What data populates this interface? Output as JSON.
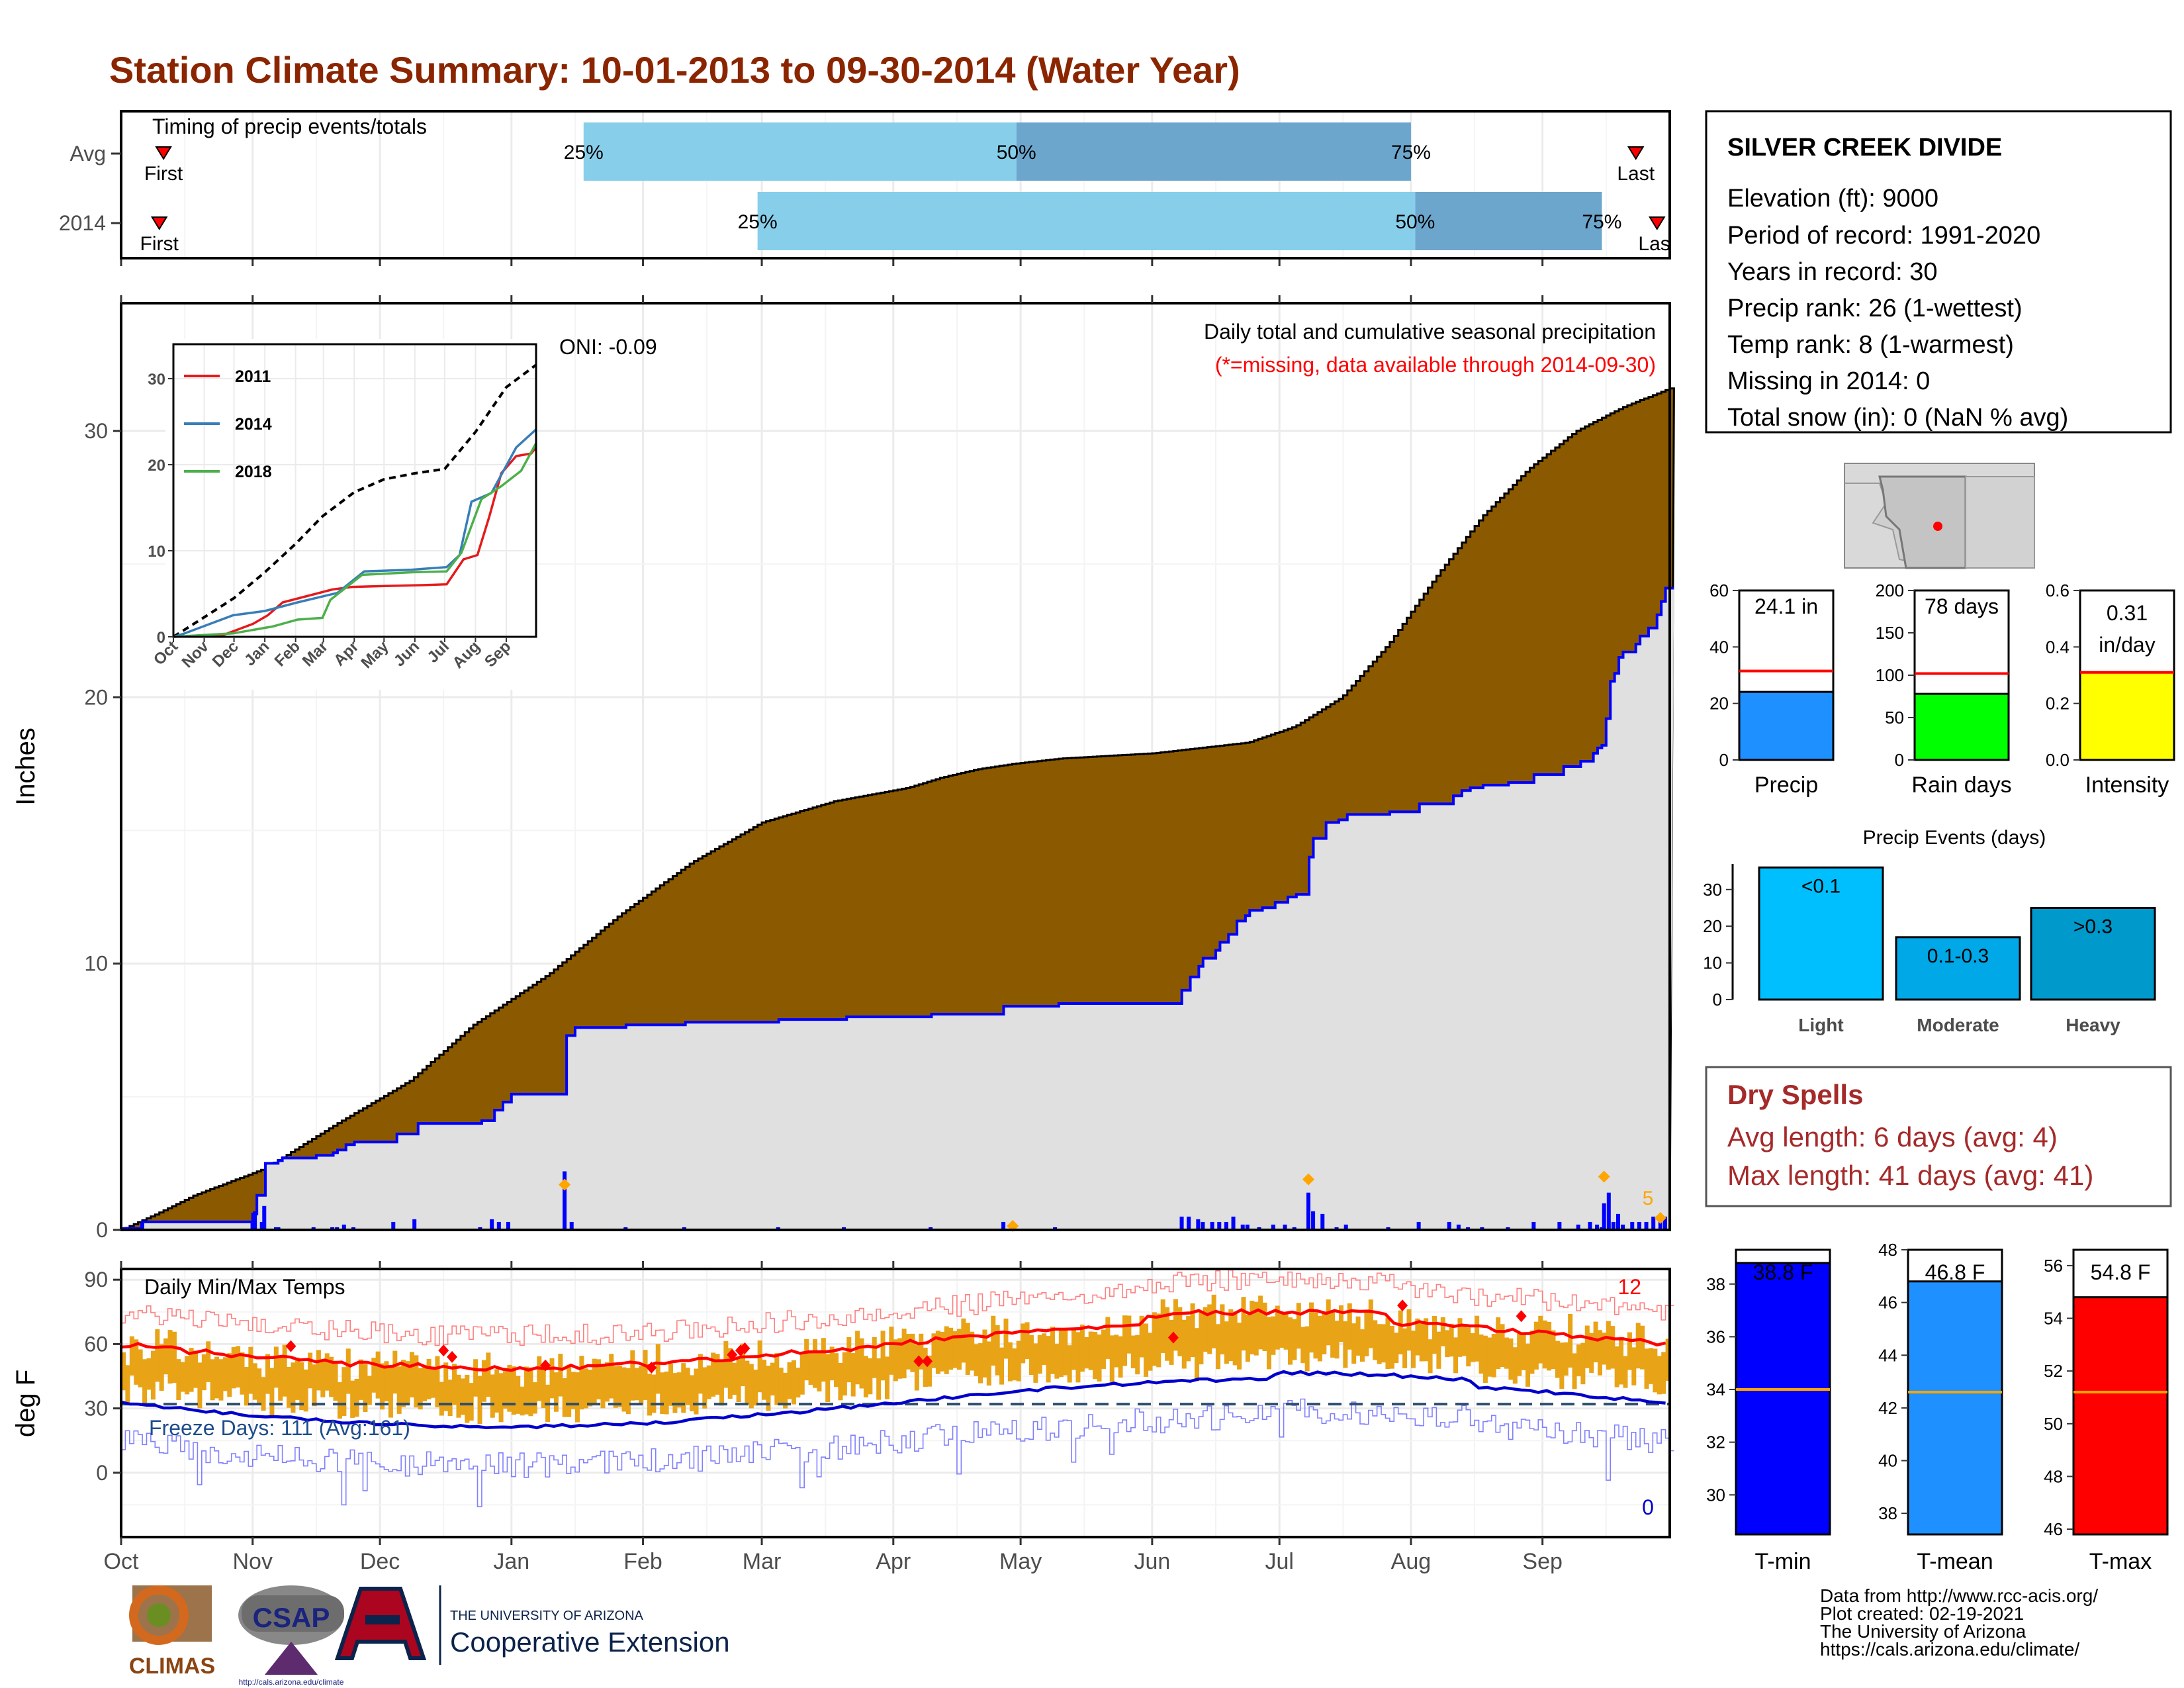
{
  "title": "Station Climate Summary: 10-01-2013 to 09-30-2014 (Water Year)",
  "months": [
    "Oct",
    "Nov",
    "Dec",
    "Jan",
    "Feb",
    "Mar",
    "Apr",
    "May",
    "Jun",
    "Jul",
    "Aug",
    "Sep"
  ],
  "timing": {
    "title": "Timing of precip events/totals",
    "rows": [
      {
        "label": "Avg",
        "first_label": "First",
        "last_label": "Last",
        "first_day": 10,
        "last_day": 357,
        "p25": 109,
        "p50": 211,
        "p75": 304
      },
      {
        "label": "2014",
        "first_label": "First",
        "last_label": "Last",
        "first_day": 9,
        "last_day": 362,
        "p25": 150,
        "p50": 305,
        "p75": 349
      }
    ],
    "pct_labels": [
      "25%",
      "50%",
      "75%"
    ]
  },
  "precip_panel": {
    "ylabel": "Inches",
    "annotation_title": "Daily total and cumulative seasonal precipitation",
    "annotation_sub": "(*=missing, data available through 2014-09-30)",
    "oni_label": "ONI: -0.09",
    "yticks": [
      0,
      10,
      20,
      30
    ],
    "corner_count": "5",
    "colors": {
      "avg_fill": "#8b5a00",
      "obs_fill": "#e0e0e0",
      "obs_line": "#0000ff",
      "daily": "#0000ff",
      "marker": "#ffa500"
    }
  },
  "inset": {
    "xticks": [
      "Oct",
      "Nov",
      "Dec",
      "Jan",
      "Feb",
      "Mar",
      "Apr",
      "May",
      "Jun",
      "Jul",
      "Aug",
      "Sep"
    ],
    "yticks": [
      0,
      10,
      20,
      30
    ],
    "legend": [
      {
        "name": "2011",
        "color": "#e41a1c"
      },
      {
        "name": "2014",
        "color": "#377eb8"
      },
      {
        "name": "2018",
        "color": "#4daf4a"
      }
    ]
  },
  "temp_panel": {
    "ylabel": "deg F",
    "title": "Daily Min/Max Temps",
    "freeze_label": "Freeze Days: 111 (Avg:161)",
    "max_count": "12",
    "min_count": "0",
    "yticks": [
      0,
      30,
      60,
      90
    ],
    "colors": {
      "range": "#e8a317",
      "avg_max": "#ff0000",
      "avg_min": "#0000cc",
      "rec_max": "#ff8080",
      "rec_min": "#8080ff"
    }
  },
  "station": {
    "name": "SILVER CREEK DIVIDE",
    "lines": [
      "Elevation (ft): 9000",
      "Period of record: 1991-2020",
      "Years in record: 30",
      "Precip rank: 26 (1-wettest)",
      "Temp rank: 8 (1-warmest)",
      "Missing in 2014: 0",
      "Total snow (in): 0 (NaN % avg)"
    ]
  },
  "gauges": [
    {
      "id": "precip",
      "label": "Precip",
      "value_text": "24.1 in",
      "value": 24.1,
      "avg": 31.5,
      "ymax": 60,
      "yticks": [
        "0",
        "20",
        "40",
        "60"
      ],
      "color": "#1e90ff"
    },
    {
      "id": "raindays",
      "label": "Rain days",
      "value_text": "78 days",
      "value": 78,
      "avg": 102,
      "ymax": 200,
      "yticks": [
        "0",
        "50",
        "100",
        "150",
        "200"
      ],
      "color": "#00ff00"
    },
    {
      "id": "intensity",
      "label": "Intensity",
      "value_text": "0.31 in/day",
      "value_lines": [
        "0.31",
        "in/day"
      ],
      "value": 0.31,
      "avg": 0.31,
      "ymax": 0.6,
      "yticks": [
        "0.0",
        "0.2",
        "0.4",
        "0.6"
      ],
      "color": "#ffff00"
    }
  ],
  "events": {
    "title": "Precip Events (days)",
    "categories": [
      "Light",
      "Moderate",
      "Heavy"
    ],
    "labels": [
      "<0.1",
      "0.1-0.3",
      ">0.3"
    ],
    "values": [
      36,
      17,
      25
    ],
    "yticks": [
      0,
      10,
      20,
      30
    ],
    "colors": [
      "#00bfff",
      "#00a8e8",
      "#0099cc"
    ]
  },
  "dry_spells": {
    "title": "Dry Spells",
    "avg_line": "Avg length: 6 days (avg: 4)",
    "max_line": "Max length: 41 days (avg: 41)",
    "color": "#a52a2a"
  },
  "temps": [
    {
      "id": "tmin",
      "label": "T-min",
      "value_text": "38.8 F",
      "value": 38.8,
      "avg": 34.0,
      "ymin": 28.5,
      "ymax": 39.3,
      "yticks": [
        30,
        32,
        34,
        36,
        38
      ],
      "color": "#0000ff"
    },
    {
      "id": "tmean",
      "label": "T-mean",
      "value_text": "46.8 F",
      "value": 46.8,
      "avg": 42.6,
      "ymin": 37.2,
      "ymax": 48.0,
      "yticks": [
        38,
        40,
        42,
        44,
        46,
        48
      ],
      "color": "#1e90ff"
    },
    {
      "id": "tmax",
      "label": "T-max",
      "value_text": "54.8 F",
      "value": 54.8,
      "avg": 51.2,
      "ymin": 45.8,
      "ymax": 56.6,
      "yticks": [
        46,
        48,
        50,
        52,
        54,
        56
      ],
      "color": "#ff0000"
    }
  ],
  "footer": {
    "lines": [
      "Data from http://www.rcc-acis.org/",
      "Plot created: 02-19-2021",
      "The University of Arizona",
      "https://cals.arizona.edu/climate/"
    ],
    "logo_climas": "CLIMAS",
    "logo_csap": "CSAP",
    "logo_csap_url": "http://cals.arizona.edu/climate",
    "ua_small": "THE UNIVERSITY OF ARIZONA",
    "ua_big": "Cooperative Extension"
  },
  "chart_data": {
    "type": "area",
    "title": "Daily total and cumulative seasonal precipitation",
    "ylabel": "Inches",
    "ylim": [
      0,
      35
    ],
    "x": [
      "Oct",
      "Nov",
      "Dec",
      "Jan",
      "Feb",
      "Mar",
      "Apr",
      "May",
      "Jun",
      "Jul",
      "Aug",
      "Sep"
    ],
    "series": [
      {
        "name": "Avg",
        "values": [
          0.5,
          2.1,
          3.9,
          7.6,
          11.7,
          14.7,
          16.4,
          17.3,
          18.0,
          19.1,
          23.8,
          29.0
        ]
      },
      {
        "name": "2014",
        "values": [
          0.3,
          0.4,
          2.6,
          4.0,
          4.1,
          5.1,
          7.8,
          7.9,
          8.0,
          8.1,
          12.3,
          16.8
        ]
      }
    ],
    "end_values": {
      "Avg": 31.6,
      "2014": 24.1
    }
  }
}
